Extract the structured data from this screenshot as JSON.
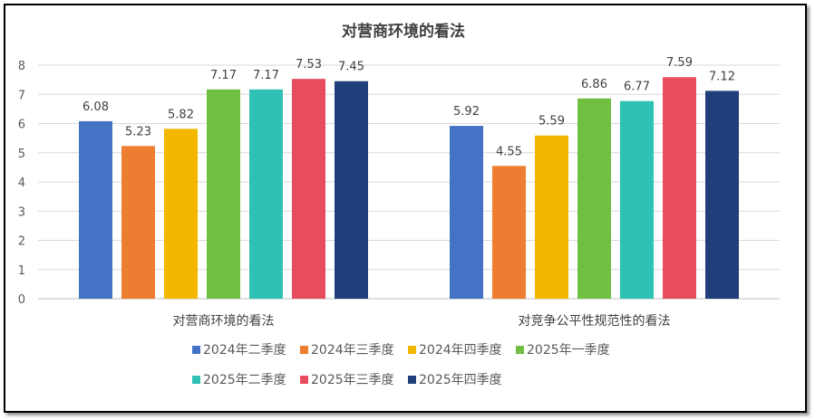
{
  "chart_data": {
    "type": "bar",
    "title": "对营商环境的看法",
    "categories": [
      "对营商环境的看法",
      "对竞争公平性规范性的看法"
    ],
    "series": [
      {
        "name": "2024年二季度",
        "color": "#4472C4",
        "values": [
          6.08,
          5.92
        ]
      },
      {
        "name": "2024年三季度",
        "color": "#ED7D31",
        "values": [
          5.23,
          4.55
        ]
      },
      {
        "name": "2024年四季度",
        "color": "#F2B800",
        "values": [
          5.82,
          5.59
        ]
      },
      {
        "name": "2025年一季度",
        "color": "#70BF41",
        "values": [
          7.17,
          6.86
        ]
      },
      {
        "name": "2025年二季度",
        "color": "#2EC1B4",
        "values": [
          7.17,
          6.77
        ]
      },
      {
        "name": "2025年三季度",
        "color": "#E84C5F",
        "values": [
          7.53,
          7.59
        ]
      },
      {
        "name": "2025年四季度",
        "color": "#203F7A",
        "values": [
          7.45,
          7.12
        ]
      }
    ],
    "ylim": [
      0,
      8
    ],
    "yticks": [
      "0",
      "1",
      "2",
      "3",
      "4",
      "5",
      "6",
      "7",
      "8"
    ],
    "grid": true,
    "legend": "bottom",
    "data_labels": true
  }
}
